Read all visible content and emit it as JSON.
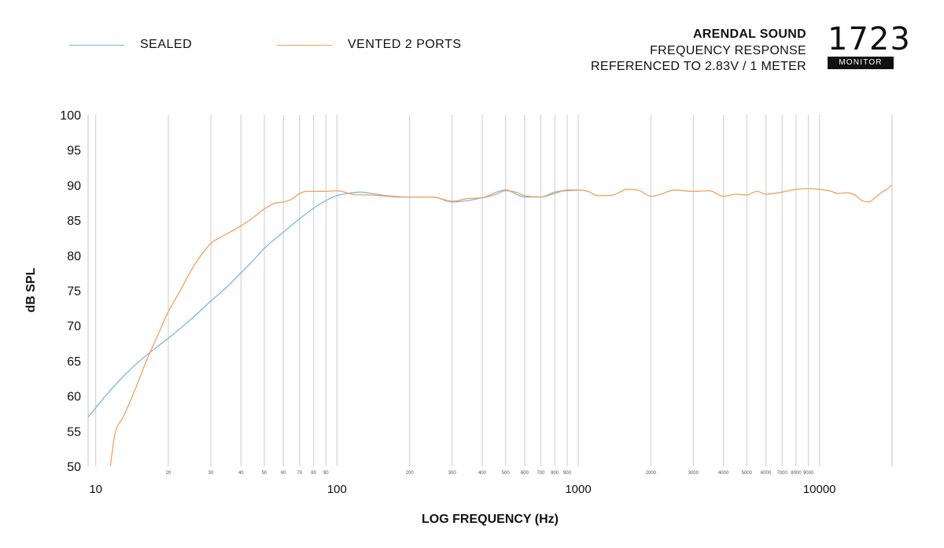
{
  "legend": {
    "sealed": "SEALED",
    "vented": "VENTED 2 PORTS"
  },
  "header": {
    "brand": "ARENDAL SOUND",
    "line1": "FREQUENCY RESPONSE",
    "line2": "REFERENCED TO 2.83V / 1 METER"
  },
  "logo": {
    "number": "1723",
    "subtitle": "MONITOR"
  },
  "chart_data": {
    "type": "line",
    "xlabel": "LOG FREQUENCY (Hz)",
    "ylabel": "dB SPL",
    "xscale": "log",
    "xlim": [
      9.3,
      20000
    ],
    "ylim": [
      50,
      100
    ],
    "yticks": [
      50,
      55,
      60,
      65,
      70,
      75,
      80,
      85,
      90,
      95,
      100
    ],
    "xticks_major": [
      10,
      100,
      1000,
      10000
    ],
    "xticks_minor": [
      20,
      30,
      40,
      50,
      60,
      70,
      80,
      90,
      200,
      300,
      400,
      500,
      600,
      700,
      800,
      900,
      2000,
      3000,
      4000,
      5000,
      6000,
      7000,
      8000,
      9000
    ],
    "grid": "vertical",
    "legend_position": "top-left",
    "colors": {
      "sealed": "#7bb8dd",
      "vented": "#f0a060"
    },
    "series": [
      {
        "name": "SEALED",
        "x": [
          9.3,
          12,
          15,
          18,
          20,
          25,
          30,
          35,
          40,
          45,
          50,
          60,
          70,
          80,
          90,
          100,
          110,
          125,
          140,
          160,
          200,
          250,
          300,
          400,
          500,
          600,
          700,
          800,
          1000
        ],
        "y": [
          57,
          61.5,
          64.8,
          67,
          68.2,
          71,
          73.5,
          75.5,
          77.5,
          79.3,
          81,
          83.3,
          85.2,
          86.7,
          87.8,
          88.5,
          88.8,
          89,
          88.8,
          88.5,
          88.3,
          88.3,
          87.6,
          88.2,
          89.3,
          88.3,
          88.3,
          89,
          89.3
        ]
      },
      {
        "name": "VENTED 2 PORTS",
        "x": [
          11.5,
          12,
          13,
          14,
          15,
          16,
          18,
          20,
          22,
          25,
          28,
          30,
          33,
          36,
          40,
          45,
          50,
          55,
          60,
          65,
          70,
          75,
          80,
          90,
          100,
          110,
          120,
          130,
          150,
          180,
          200,
          250,
          300,
          350,
          400,
          450,
          500,
          550,
          600,
          700,
          800,
          900,
          1000,
          1100,
          1200,
          1400,
          1600,
          1800,
          2000,
          2200,
          2500,
          3000,
          3500,
          4000,
          4500,
          5000,
          5500,
          6000,
          7000,
          8000,
          9000,
          10000,
          11000,
          12000,
          13000,
          14000,
          15000,
          16000,
          17000,
          18000,
          19000,
          20000
        ],
        "y": [
          50,
          54.5,
          57,
          59.5,
          62,
          64.5,
          68.5,
          72,
          74.5,
          78,
          80.5,
          81.7,
          82.6,
          83.3,
          84.2,
          85.4,
          86.6,
          87.4,
          87.6,
          88,
          88.8,
          89.1,
          89.1,
          89.1,
          89.2,
          88.9,
          88.6,
          88.6,
          88.5,
          88.3,
          88.3,
          88.3,
          87.7,
          88.1,
          88.2,
          88.6,
          89.2,
          89,
          88.5,
          88.3,
          88.8,
          89.3,
          89.3,
          89.1,
          88.5,
          88.6,
          89.4,
          89.2,
          88.4,
          88.7,
          89.3,
          89.1,
          89.2,
          88.4,
          88.7,
          88.6,
          89.1,
          88.7,
          89,
          89.4,
          89.5,
          89.4,
          89.2,
          88.8,
          88.9,
          88.6,
          87.8,
          87.6,
          88.2,
          88.9,
          89.4,
          90
        ]
      }
    ]
  }
}
